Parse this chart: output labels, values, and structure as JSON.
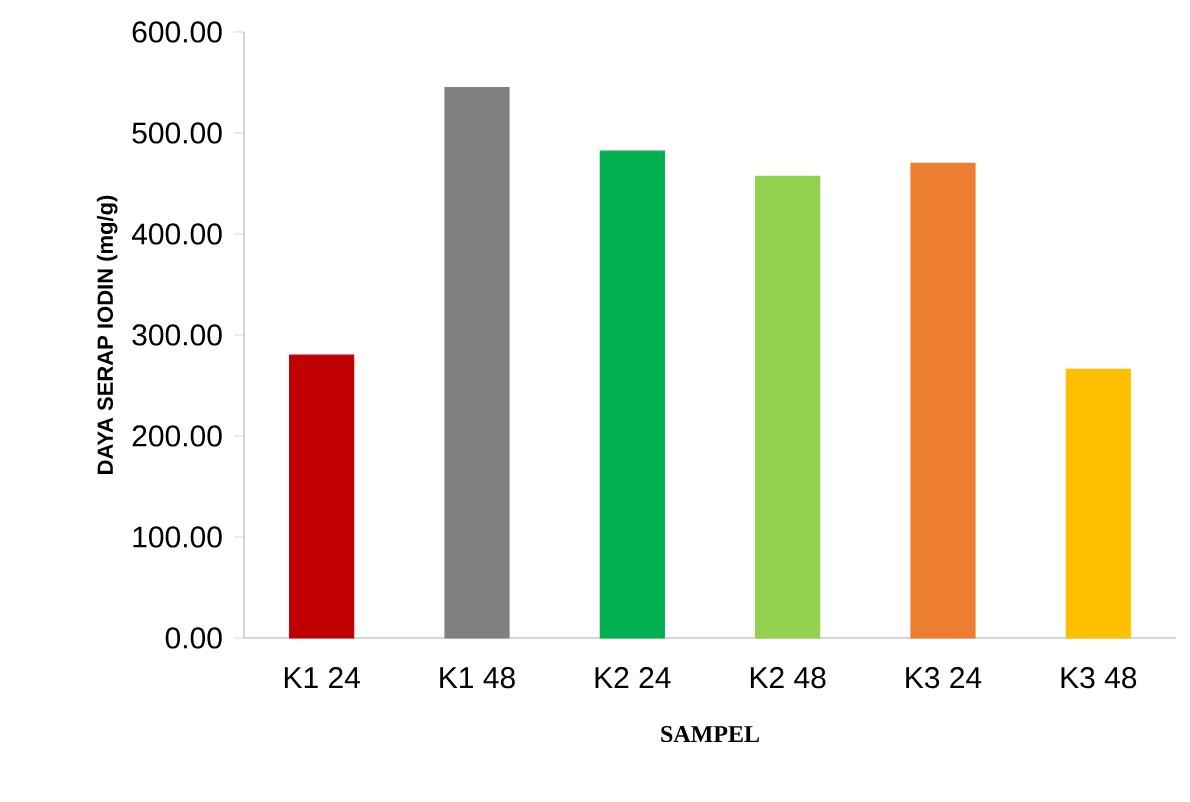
{
  "chart_data": {
    "type": "bar",
    "xlabel": "SAMPEL",
    "ylabel": "DAYA SERAP IODIN (mg/g)",
    "categories": [
      "K1 24",
      "K1 48",
      "K2 24",
      "K2 48",
      "K3 24",
      "K3 48"
    ],
    "values": [
      280,
      545,
      482,
      457,
      470,
      266
    ],
    "colors": [
      "#c00000",
      "#808080",
      "#00b050",
      "#92d050",
      "#ed7d31",
      "#ffc000"
    ],
    "ylim": [
      0,
      600
    ],
    "yticks": [
      {
        "value": 0,
        "label": "0.00"
      },
      {
        "value": 100,
        "label": "100.00"
      },
      {
        "value": 200,
        "label": "200.00"
      },
      {
        "value": 300,
        "label": "300.00"
      },
      {
        "value": 400,
        "label": "400.00"
      },
      {
        "value": 500,
        "label": "500.00"
      },
      {
        "value": 600,
        "label": "600.00"
      }
    ],
    "grid": false
  }
}
